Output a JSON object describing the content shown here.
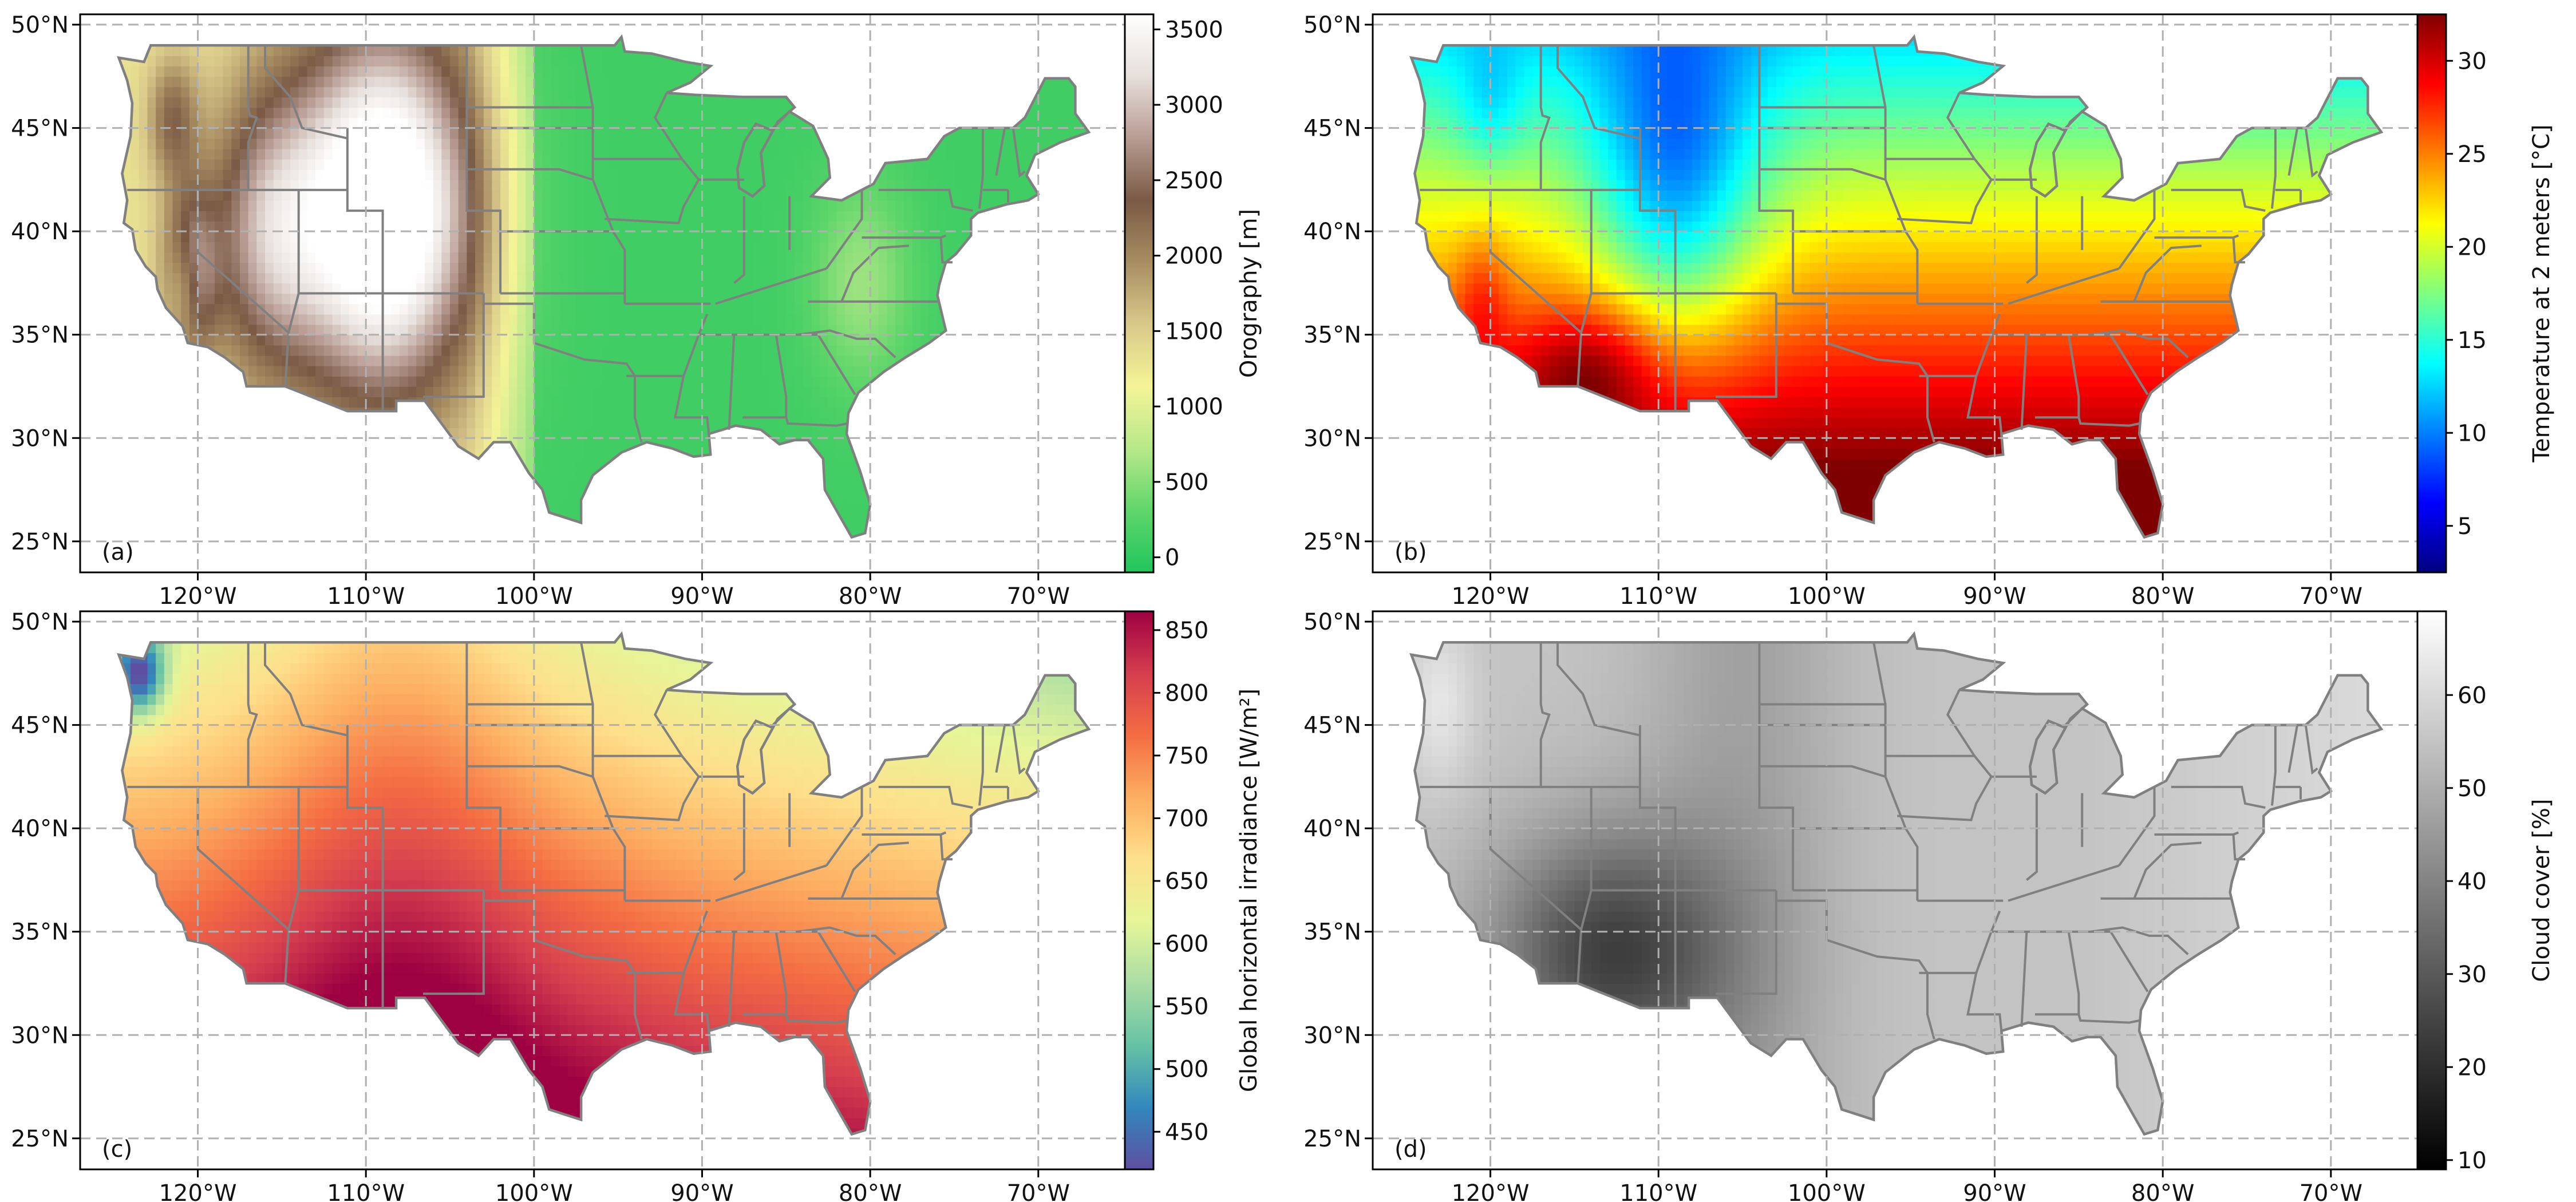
{
  "panels": [
    {
      "label": "(a)",
      "variable": "orography",
      "colorbar": {
        "label": "Orography [m]",
        "label_html": "Orography [m]",
        "ticks": [
          "0",
          "500",
          "1000",
          "1500",
          "2000",
          "2500",
          "3000",
          "3500"
        ],
        "tick_values": [
          0,
          500,
          1000,
          1500,
          2000,
          2500,
          3000,
          3500
        ],
        "range": [
          -100,
          3600
        ],
        "colormap": "terrain",
        "stops": [
          "#22c55e",
          "#5fd66a",
          "#b8e88a",
          "#f4f497",
          "#d9c98a",
          "#a88d62",
          "#7a5a45",
          "#b89c93",
          "#e7dfdb",
          "#ffffff"
        ]
      }
    },
    {
      "label": "(b)",
      "variable": "temperature",
      "colorbar": {
        "label": "Temperature at 2 meters [°C]",
        "ticks": [
          "5",
          "10",
          "15",
          "20",
          "25",
          "30"
        ],
        "tick_values": [
          5,
          10,
          15,
          20,
          25,
          30
        ],
        "range": [
          2.5,
          32.5
        ],
        "colormap": "jet",
        "stops": [
          "#00007f",
          "#0000ff",
          "#007fff",
          "#00ffff",
          "#7fff7f",
          "#ffff00",
          "#ff7f00",
          "#ff0000",
          "#7f0000"
        ]
      }
    },
    {
      "label": "(c)",
      "variable": "irradiance",
      "colorbar": {
        "label": "Global horizontal irradiance [W/m²]",
        "ticks": [
          "450",
          "500",
          "550",
          "600",
          "650",
          "700",
          "750",
          "800",
          "850"
        ],
        "tick_values": [
          450,
          500,
          550,
          600,
          650,
          700,
          750,
          800,
          850
        ],
        "range": [
          420,
          865
        ],
        "colormap": "Spectral_r",
        "stops": [
          "#5e4fa2",
          "#3288bd",
          "#66c2a5",
          "#abdda4",
          "#e6f598",
          "#fee08b",
          "#fdae61",
          "#f46d43",
          "#d53e4f",
          "#9e0142"
        ]
      }
    },
    {
      "label": "(d)",
      "variable": "cloud_cover",
      "colorbar": {
        "label": "Cloud cover [%]",
        "ticks": [
          "10",
          "20",
          "30",
          "40",
          "50",
          "60"
        ],
        "tick_values": [
          10,
          20,
          30,
          40,
          50,
          60
        ],
        "range": [
          9,
          69
        ],
        "colormap": "gray",
        "stops": [
          "#000000",
          "#ffffff"
        ]
      }
    }
  ],
  "map": {
    "lon_range": [
      -127,
      -64
    ],
    "lat_range": [
      23.5,
      50.5
    ],
    "lon_ticks": [
      "120°W",
      "110°W",
      "100°W",
      "90°W",
      "80°W",
      "70°W"
    ],
    "lon_tick_values": [
      -120,
      -110,
      -100,
      -90,
      -80,
      -70
    ],
    "lat_ticks": [
      "25°N",
      "30°N",
      "35°N",
      "40°N",
      "45°N",
      "50°N"
    ],
    "lat_tick_values": [
      25,
      30,
      35,
      40,
      45,
      50
    ],
    "grid": "dashed",
    "border_color": "#808080"
  }
}
